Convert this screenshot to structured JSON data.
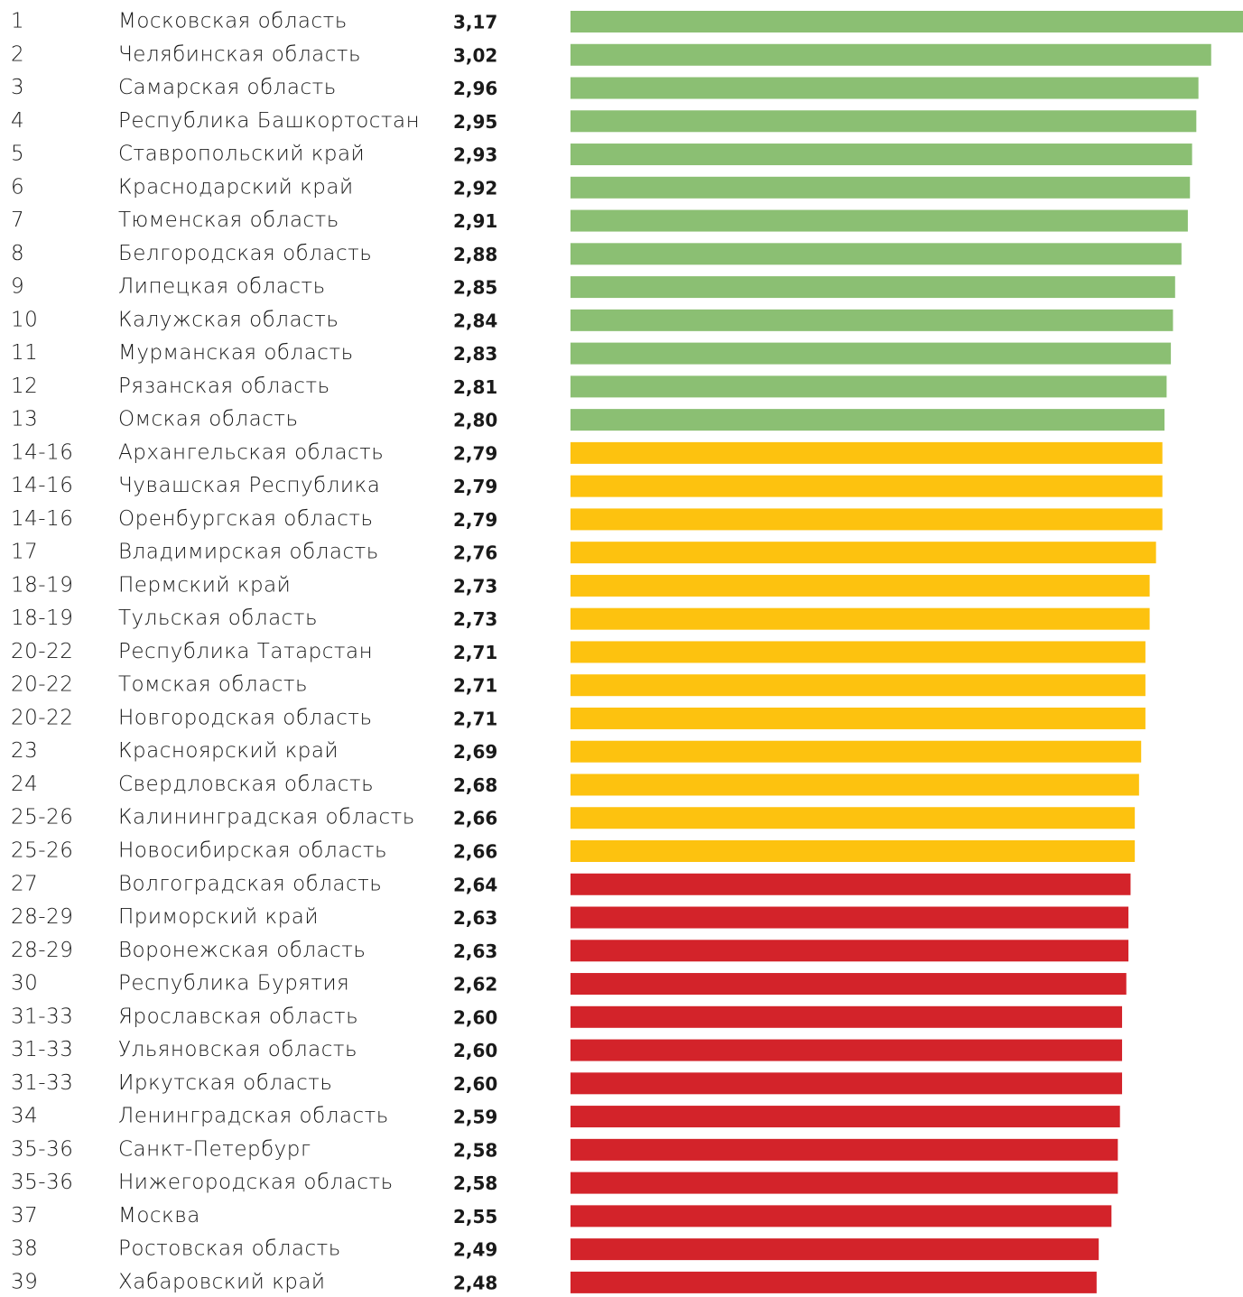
{
  "chart_data": {
    "type": "bar",
    "ranks": [
      "1",
      "2",
      "3",
      "4",
      "5",
      "6",
      "7",
      "8",
      "9",
      "10",
      "11",
      "12",
      "13",
      "14-16",
      "14-16",
      "14-16",
      "17",
      "18-19",
      "18-19",
      "20-22",
      "20-22",
      "20-22",
      "23",
      "24",
      "25-26",
      "25-26",
      "27",
      "28-29",
      "28-29",
      "30",
      "31-33",
      "31-33",
      "31-33",
      "34",
      "35-36",
      "35-36",
      "37",
      "38",
      "39"
    ],
    "categories": [
      "Московская область",
      "Челябинская область",
      "Самарская область",
      "Республика Башкортостан",
      "Ставропольский край",
      "Краснодарский край",
      "Тюменская область",
      "Белгородская область",
      "Липецкая область",
      "Калужская область",
      "Мурманская область",
      "Рязанская область",
      "Омская область",
      "Архангельская область",
      "Чувашская Республика",
      "Оренбургская область",
      "Владимирская область",
      "Пермский край",
      "Тульская область",
      "Республика Татарстан",
      "Томская область",
      "Новгородская область",
      "Красноярский край",
      "Свердловская область",
      "Калининградская область",
      "Новосибирская область",
      "Волгоградская область",
      "Приморский край",
      "Воронежская область",
      "Республика Бурятия",
      "Ярославская область",
      "Ульяновская область",
      "Иркутская область",
      "Ленинградская область",
      "Санкт-Петербург",
      "Нижегородская область",
      "Москва",
      "Ростовская область",
      "Хабаровский край"
    ],
    "values": [
      3.17,
      3.02,
      2.96,
      2.95,
      2.93,
      2.92,
      2.91,
      2.88,
      2.85,
      2.84,
      2.83,
      2.81,
      2.8,
      2.79,
      2.79,
      2.79,
      2.76,
      2.73,
      2.73,
      2.71,
      2.71,
      2.71,
      2.69,
      2.68,
      2.66,
      2.66,
      2.64,
      2.63,
      2.63,
      2.62,
      2.6,
      2.6,
      2.6,
      2.59,
      2.58,
      2.58,
      2.55,
      2.49,
      2.48
    ],
    "value_labels": [
      "3,17",
      "3,02",
      "2,96",
      "2,95",
      "2,93",
      "2,92",
      "2,91",
      "2,88",
      "2,85",
      "2,84",
      "2,83",
      "2,81",
      "2,80",
      "2,79",
      "2,79",
      "2,79",
      "2,76",
      "2,73",
      "2,73",
      "2,71",
      "2,71",
      "2,71",
      "2,69",
      "2,68",
      "2,66",
      "2,66",
      "2,64",
      "2,63",
      "2,63",
      "2,62",
      "2,60",
      "2,60",
      "2,60",
      "2,59",
      "2,58",
      "2,58",
      "2,55",
      "2,49",
      "2,48"
    ],
    "colors": [
      "#8bbf73",
      "#8bbf73",
      "#8bbf73",
      "#8bbf73",
      "#8bbf73",
      "#8bbf73",
      "#8bbf73",
      "#8bbf73",
      "#8bbf73",
      "#8bbf73",
      "#8bbf73",
      "#8bbf73",
      "#8bbf73",
      "#fdc20f",
      "#fdc20f",
      "#fdc20f",
      "#fdc20f",
      "#fdc20f",
      "#fdc20f",
      "#fdc20f",
      "#fdc20f",
      "#fdc20f",
      "#fdc20f",
      "#fdc20f",
      "#fdc20f",
      "#fdc20f",
      "#d3232a",
      "#d3232a",
      "#d3232a",
      "#d3232a",
      "#d3232a",
      "#d3232a",
      "#d3232a",
      "#d3232a",
      "#d3232a",
      "#d3232a",
      "#d3232a",
      "#d3232a",
      "#d3232a"
    ]
  }
}
